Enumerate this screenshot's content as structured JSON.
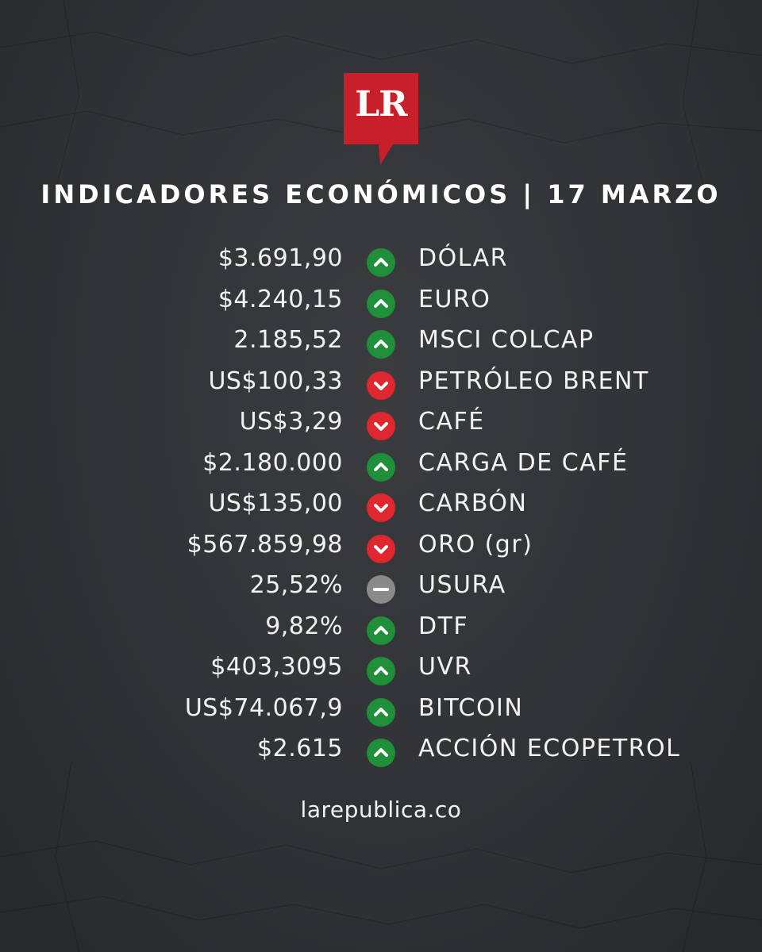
{
  "logo": {
    "text": "LR",
    "color": "#c8202a"
  },
  "title": "INDICADORES ECONÓMICOS | 17 MARZO",
  "colors": {
    "up": "#1f8f3a",
    "down": "#e0262e",
    "neutral": "#8a8a8a",
    "background": "#2f3134"
  },
  "indicators": [
    {
      "value": "$3.691,90",
      "trend": "up",
      "icon": "chevron-up-icon",
      "label": "DÓLAR"
    },
    {
      "value": "$4.240,15",
      "trend": "up",
      "icon": "chevron-up-icon",
      "label": "EURO"
    },
    {
      "value": "2.185,52",
      "trend": "up",
      "icon": "chevron-up-icon",
      "label": "MSCI COLCAP"
    },
    {
      "value": "US$100,33",
      "trend": "down",
      "icon": "chevron-down-icon",
      "label": "PETRÓLEO BRENT"
    },
    {
      "value": "US$3,29",
      "trend": "down",
      "icon": "chevron-down-icon",
      "label": "CAFÉ"
    },
    {
      "value": "$2.180.000",
      "trend": "up",
      "icon": "chevron-up-icon",
      "label": "CARGA DE CAFÉ"
    },
    {
      "value": "US$135,00",
      "trend": "down",
      "icon": "chevron-down-icon",
      "label": "CARBÓN"
    },
    {
      "value": "$567.859,98",
      "trend": "down",
      "icon": "chevron-down-icon",
      "label": "ORO (gr)"
    },
    {
      "value": "25,52%",
      "trend": "neutral",
      "icon": "minus-icon",
      "label": "USURA"
    },
    {
      "value": "9,82%",
      "trend": "up",
      "icon": "chevron-up-icon",
      "label": "DTF"
    },
    {
      "value": "$403,3095",
      "trend": "up",
      "icon": "chevron-up-icon",
      "label": "UVR"
    },
    {
      "value": "US$74.067,9",
      "trend": "up",
      "icon": "chevron-up-icon",
      "label": "BITCOIN"
    },
    {
      "value": "$2.615",
      "trend": "up",
      "icon": "chevron-up-icon",
      "label": "ACCIÓN ECOPETROL"
    }
  ],
  "footer": "larepublica.co"
}
